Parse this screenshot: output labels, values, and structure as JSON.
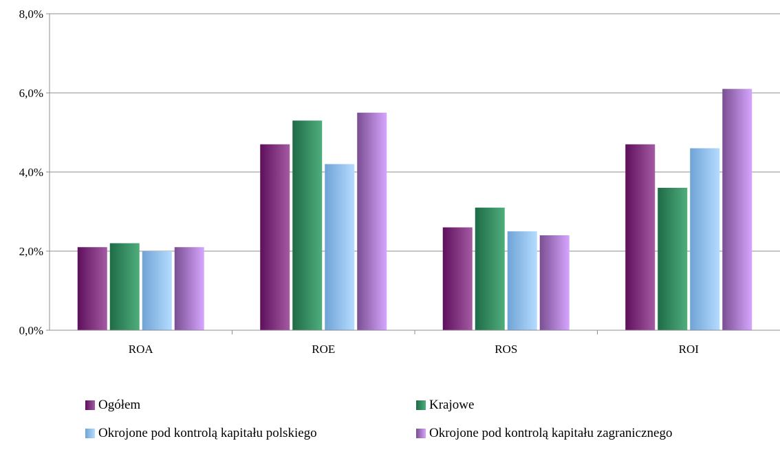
{
  "chart_data": {
    "type": "bar",
    "categories": [
      "ROA",
      "ROE",
      "ROS",
      "ROI"
    ],
    "y_ticks": [
      "0,0%",
      "2,0%",
      "4,0%",
      "6,0%",
      "8,0%"
    ],
    "ylim": [
      0,
      8
    ],
    "grid": true,
    "legend_position": "bottom",
    "series": [
      {
        "name": "Ogółem",
        "values": [
          2.1,
          4.7,
          2.6,
          4.7
        ],
        "color_dark": "#5e0f5c",
        "color_light": "#a45ba2"
      },
      {
        "name": "Krajowe",
        "values": [
          2.2,
          5.3,
          3.1,
          3.6
        ],
        "color_dark": "#1e6b47",
        "color_light": "#4fae7c"
      },
      {
        "name": "Okrojone pod kontrolą kapitału polskiego",
        "values": [
          2.0,
          4.2,
          2.5,
          4.6
        ],
        "color_dark": "#6fa3d6",
        "color_light": "#b5dcff"
      },
      {
        "name": "Okrojone pod kontrolą kapitału zagranicznego",
        "values": [
          2.1,
          5.5,
          2.4,
          6.1
        ],
        "color_dark": "#7a4e92",
        "color_light": "#d6a6ff"
      }
    ]
  }
}
